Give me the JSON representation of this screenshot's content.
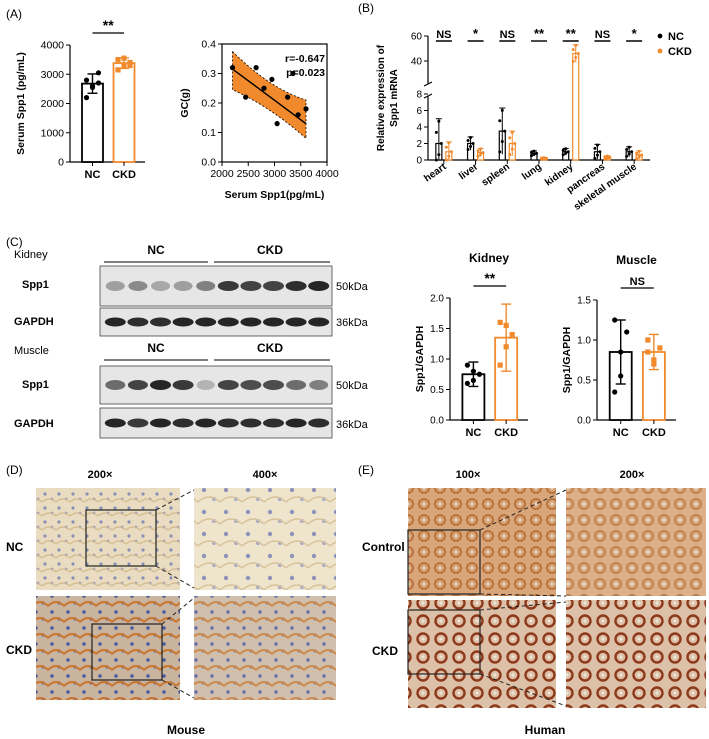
{
  "panels": {
    "A": "(A)",
    "B": "(B)",
    "C": "(C)",
    "D": "(D)",
    "E": "(E)"
  },
  "colors": {
    "nc": "#000000",
    "ckd": "#f08a2c",
    "sig": "#e8382c",
    "band": "#1a1a1a"
  },
  "panel_a": {
    "chart_data": [
      {
        "type": "bar",
        "categories": [
          "NC",
          "CKD"
        ],
        "values": [
          2680,
          3380
        ],
        "errors": [
          330,
          180
        ],
        "points": [
          [
            2200,
            2550,
            2700,
            2800,
            2600,
            3050
          ],
          [
            3150,
            3300,
            3400,
            3500,
            3550,
            3300
          ]
        ],
        "ylabel": "Serum Spp1 (pg/mL)",
        "ylim": [
          0,
          4000
        ],
        "yticks": [
          "0",
          "1000",
          "2000",
          "3000",
          "4000"
        ],
        "significance": "**"
      },
      {
        "type": "scatter",
        "xlabel": "Serum Spp1(pg/mL)",
        "ylabel": "GC(g)",
        "xlim": [
          2000,
          4000
        ],
        "ylim": [
          0,
          0.4
        ],
        "xticks": [
          "2000",
          "2500",
          "3000",
          "3500",
          "4000"
        ],
        "yticks": [
          "0.0",
          "0.1",
          "0.2",
          "0.3",
          "0.4"
        ],
        "x": [
          2200,
          2450,
          2650,
          2800,
          2950,
          3050,
          3250,
          3350,
          3450,
          3600
        ],
        "y": [
          0.32,
          0.22,
          0.32,
          0.25,
          0.28,
          0.13,
          0.22,
          0.3,
          0.16,
          0.18
        ],
        "fit": {
          "x": [
            2200,
            3600
          ],
          "y": [
            0.315,
            0.13
          ]
        },
        "r_label": "r=-0.647",
        "p_label": "p=0.023"
      }
    ]
  },
  "panel_b": {
    "chart_data": {
      "type": "bar",
      "ylabel_line1": "Relative expression of",
      "ylabel_line2": "Spp1 mRNA",
      "categories": [
        "heart",
        "liver",
        "spleen",
        "lung",
        "kidney",
        "pancreas",
        "skeletal muscle"
      ],
      "series": [
        {
          "name": "NC",
          "values": [
            2.0,
            2.0,
            3.5,
            0.8,
            1.0,
            1.0,
            1.0
          ],
          "errors": [
            3.0,
            0.8,
            2.8,
            0.3,
            0.4,
            0.9,
            0.6
          ]
        },
        {
          "name": "CKD",
          "values": [
            1.0,
            0.9,
            2.0,
            0.2,
            46,
            0.3,
            0.6
          ],
          "errors": [
            1.2,
            0.5,
            1.5,
            0.1,
            7,
            0.2,
            0.5
          ]
        }
      ],
      "significance": [
        "NS",
        "*",
        "NS",
        "**",
        "**",
        "NS",
        "*"
      ],
      "yticks": [
        "0",
        "2",
        "4",
        "6",
        "8",
        "40",
        "60"
      ],
      "ybreak": [
        8,
        20
      ],
      "legend_position": "top-right"
    }
  },
  "panel_c": {
    "tissue_kidney": "Kidney",
    "tissue_muscle": "Muscle",
    "group_nc": "NC",
    "group_ckd": "CKD",
    "spp1": "Spp1",
    "gapdh": "GAPDH",
    "mw_50": "50kDa",
    "mw_36": "36kDa",
    "chart_data": [
      {
        "type": "bar",
        "title": "Kidney",
        "categories": [
          "NC",
          "CKD"
        ],
        "values": [
          0.75,
          1.35
        ],
        "errors": [
          0.2,
          0.55
        ],
        "points": [
          [
            0.9,
            0.65,
            0.75,
            0.6,
            0.8
          ],
          [
            1.6,
            1.2,
            1.4,
            0.9,
            1.55
          ]
        ],
        "ylabel": "Spp1/GAPDH",
        "ylim": [
          0,
          2.0
        ],
        "yticks": [
          "0.0",
          "0.5",
          "1.0",
          "1.5",
          "2.0"
        ],
        "significance": "**"
      },
      {
        "type": "bar",
        "title": "Muscle",
        "categories": [
          "NC",
          "CKD"
        ],
        "values": [
          0.85,
          0.85
        ],
        "errors": [
          0.4,
          0.22
        ],
        "points": [
          [
            1.25,
            0.85,
            1.1,
            0.35,
            0.55
          ],
          [
            1.0,
            0.75,
            0.9,
            0.85,
            0.7
          ]
        ],
        "ylabel": "Spp1/GAPDH",
        "ylim": [
          0,
          1.5
        ],
        "yticks": [
          "0.0",
          "0.5",
          "1.0",
          "1.5"
        ],
        "significance": "NS"
      }
    ]
  },
  "panel_d": {
    "mag1": "200×",
    "mag2": "400×",
    "row1": "NC",
    "row2": "CKD",
    "caption": "Mouse"
  },
  "panel_e": {
    "mag1": "100×",
    "mag2": "200×",
    "row1": "Control",
    "row2": "CKD",
    "caption": "Human"
  }
}
